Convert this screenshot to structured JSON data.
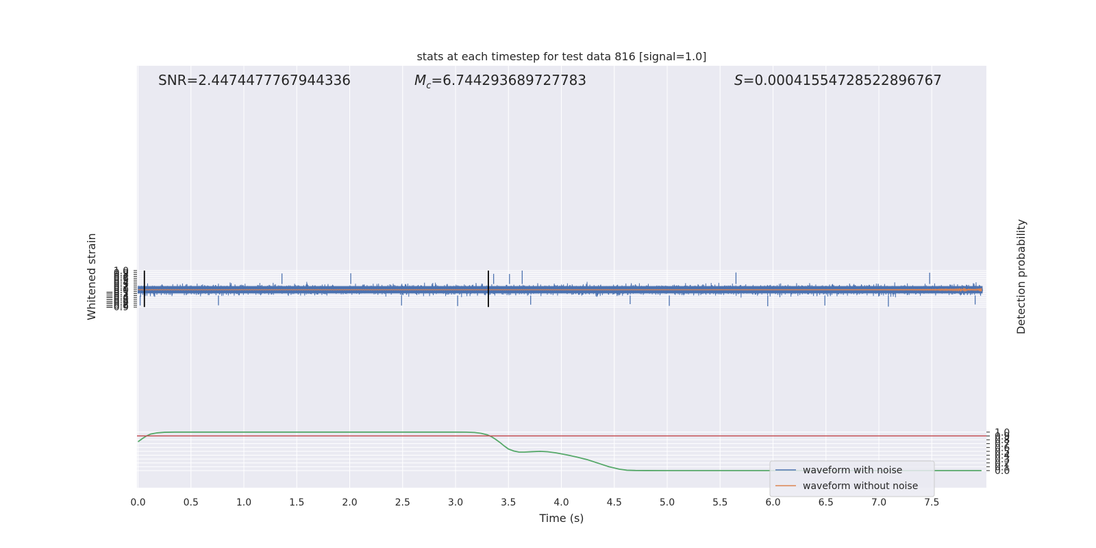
{
  "chart_data": {
    "type": "line",
    "title": "stats at each timestep for test data 816 [signal=1.0]",
    "xlabel": "Time (s)",
    "ylabel_left": "Whitened strain",
    "ylabel_right": "Detection probability",
    "xlim": [
      0.0,
      8.0
    ],
    "ylim_left": [
      -0.97,
      1.09
    ],
    "ylim_right": [
      -0.045,
      1.045
    ],
    "xticks": [
      "0.0",
      "0.5",
      "1.0",
      "1.5",
      "2.0",
      "2.5",
      "3.0",
      "3.5",
      "4.0",
      "4.5",
      "5.0",
      "5.5",
      "6.0",
      "6.5",
      "7.0",
      "7.5"
    ],
    "yticks_left": [
      "1.0",
      "0.9",
      "0.8",
      "0.7",
      "0.6",
      "0.5",
      "0.4",
      "0.3",
      "0.2",
      "0.1",
      "0.0",
      "−0.1",
      "−0.2",
      "−0.3",
      "−0.4",
      "−0.5",
      "−0.6",
      "−0.7",
      "−0.8",
      "−0.9"
    ],
    "yticks_left_values": [
      1.0,
      0.9,
      0.8,
      0.7,
      0.6,
      0.5,
      0.4,
      0.3,
      0.2,
      0.1,
      0.0,
      -0.1,
      -0.2,
      -0.3,
      -0.4,
      -0.5,
      -0.6,
      -0.7,
      -0.8,
      -0.9
    ],
    "yticks_right": [
      "1.0",
      "0.9",
      "0.8",
      "0.7",
      "0.6",
      "0.5",
      "0.4",
      "0.3",
      "0.2",
      "0.1",
      "0.0"
    ],
    "yticks_right_values": [
      1.0,
      0.9,
      0.8,
      0.7,
      0.6,
      0.5,
      0.4,
      0.3,
      0.2,
      0.1,
      0.0
    ],
    "grid": true,
    "annotations": {
      "snr": "SNR=2.4474477767944336",
      "mc_symbol": "M",
      "mc_sub": "c",
      "mc_value": "=6.744293689727783",
      "s_symbol": "S",
      "s_value": "=0.00041554728522896767"
    },
    "threshold_probability": 0.9,
    "vertical_markers_time": [
      0.06,
      3.31
    ],
    "legend": {
      "placement": "lower-right",
      "entries": [
        "waveform with noise",
        "waveform without noise"
      ]
    },
    "series": [
      {
        "name": "waveform with noise",
        "axis": "left",
        "description_type": "noise",
        "core_amplitude": 0.35,
        "peak_spikes": [
          [
            1.36,
            0.85
          ],
          [
            2.01,
            0.86
          ],
          [
            3.36,
            0.83
          ],
          [
            3.51,
            0.82
          ],
          [
            3.63,
            1.0
          ],
          [
            5.65,
            0.9
          ],
          [
            7.48,
            0.89
          ]
        ],
        "trough_spikes": [
          [
            0.02,
            -0.82
          ],
          [
            0.76,
            -0.81
          ],
          [
            2.49,
            -0.82
          ],
          [
            3.02,
            -0.85
          ],
          [
            3.71,
            -0.78
          ],
          [
            4.65,
            -0.75
          ],
          [
            5.02,
            -0.84
          ],
          [
            5.95,
            -0.86
          ],
          [
            6.49,
            -0.82
          ],
          [
            7.09,
            -0.88
          ],
          [
            7.91,
            -0.77
          ]
        ]
      },
      {
        "name": "waveform without noise",
        "axis": "left",
        "description_type": "chirp",
        "amplitude_start": 0.005,
        "amplitude_end": 0.1,
        "end_time": 7.97
      },
      {
        "name": "detection probability",
        "axis": "right",
        "x": [
          0.0,
          0.04,
          0.08,
          0.12,
          0.18,
          0.25,
          0.35,
          0.5,
          0.8,
          1.5,
          2.5,
          3.0,
          3.1,
          3.18,
          3.24,
          3.3,
          3.34,
          3.38,
          3.42,
          3.46,
          3.5,
          3.55,
          3.6,
          3.65,
          3.72,
          3.8,
          3.87,
          3.95,
          4.05,
          4.15,
          4.25,
          4.35,
          4.45,
          4.55,
          4.62,
          4.7,
          4.8,
          5.0,
          6.0,
          7.0,
          7.97
        ],
        "y": [
          0.75,
          0.83,
          0.9,
          0.95,
          0.98,
          0.995,
          1.0,
          1.0,
          1.0,
          1.0,
          1.0,
          1.0,
          0.998,
          0.99,
          0.97,
          0.93,
          0.88,
          0.81,
          0.73,
          0.64,
          0.56,
          0.51,
          0.48,
          0.48,
          0.49,
          0.5,
          0.49,
          0.46,
          0.41,
          0.35,
          0.28,
          0.19,
          0.1,
          0.035,
          0.01,
          0.003,
          0.001,
          0.0,
          0.0,
          0.0,
          0.0
        ]
      }
    ],
    "colors": {
      "noise": "#4c72b0",
      "clean": "#dd8452",
      "probability": "#55a868",
      "threshold": "#c44e52",
      "marker": "#000000",
      "plot_bg": "#eaeaf2",
      "grid": "#ffffff"
    }
  }
}
